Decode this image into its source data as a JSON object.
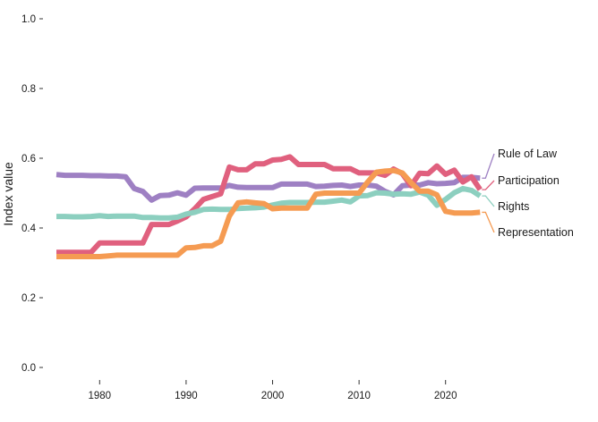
{
  "chart_data": {
    "type": "line",
    "title": "",
    "xlabel": "",
    "ylabel": "Index value",
    "xlim": [
      1975,
      2025
    ],
    "ylim": [
      0,
      1
    ],
    "x_ticks": [
      1980,
      1990,
      2000,
      2010,
      2020
    ],
    "y_ticks": [
      "0.0",
      "0.2",
      "0.4",
      "0.6",
      "0.8",
      "1.0"
    ],
    "grid": false,
    "legend": "direct labels at right end of lines",
    "x": [
      1975,
      1976,
      1977,
      1978,
      1979,
      1980,
      1981,
      1982,
      1983,
      1984,
      1985,
      1986,
      1987,
      1988,
      1989,
      1990,
      1991,
      1992,
      1993,
      1994,
      1995,
      1996,
      1997,
      1998,
      1999,
      2000,
      2001,
      2002,
      2003,
      2004,
      2005,
      2006,
      2007,
      2008,
      2009,
      2010,
      2011,
      2012,
      2013,
      2014,
      2015,
      2016,
      2017,
      2018,
      2019,
      2020,
      2021,
      2022,
      2023,
      2024
    ],
    "series": [
      {
        "name": "Rule of Law",
        "color": "#9e80c3",
        "values": [
          0.553,
          0.551,
          0.551,
          0.551,
          0.55,
          0.55,
          0.549,
          0.549,
          0.547,
          0.513,
          0.505,
          0.48,
          0.493,
          0.494,
          0.501,
          0.494,
          0.514,
          0.515,
          0.515,
          0.515,
          0.522,
          0.517,
          0.516,
          0.516,
          0.516,
          0.516,
          0.526,
          0.526,
          0.526,
          0.526,
          0.519,
          0.52,
          0.522,
          0.523,
          0.519,
          0.523,
          0.523,
          0.52,
          0.505,
          0.495,
          0.521,
          0.523,
          0.523,
          0.53,
          0.527,
          0.528,
          0.53,
          0.545,
          0.545,
          0.543
        ]
      },
      {
        "name": "Participation",
        "color": "#e0607e",
        "values": [
          0.33,
          0.33,
          0.33,
          0.33,
          0.33,
          0.357,
          0.357,
          0.357,
          0.357,
          0.357,
          0.357,
          0.41,
          0.41,
          0.41,
          0.42,
          0.432,
          0.455,
          0.482,
          0.49,
          0.498,
          0.575,
          0.567,
          0.567,
          0.584,
          0.584,
          0.595,
          0.597,
          0.604,
          0.582,
          0.582,
          0.582,
          0.582,
          0.57,
          0.57,
          0.57,
          0.558,
          0.558,
          0.558,
          0.551,
          0.569,
          0.556,
          0.521,
          0.557,
          0.556,
          0.578,
          0.554,
          0.566,
          0.532,
          0.547,
          0.51
        ]
      },
      {
        "name": "Rights",
        "color": "#8ccfbf",
        "values": [
          0.433,
          0.433,
          0.432,
          0.432,
          0.433,
          0.435,
          0.433,
          0.434,
          0.434,
          0.434,
          0.43,
          0.43,
          0.429,
          0.429,
          0.431,
          0.44,
          0.445,
          0.453,
          0.454,
          0.453,
          0.453,
          0.456,
          0.457,
          0.458,
          0.46,
          0.466,
          0.471,
          0.473,
          0.473,
          0.473,
          0.474,
          0.474,
          0.477,
          0.48,
          0.475,
          0.492,
          0.493,
          0.501,
          0.5,
          0.497,
          0.498,
          0.497,
          0.503,
          0.494,
          0.465,
          0.482,
          0.501,
          0.513,
          0.508,
          0.492
        ]
      },
      {
        "name": "Representation",
        "color": "#f59b52",
        "values": [
          0.318,
          0.318,
          0.318,
          0.318,
          0.318,
          0.318,
          0.32,
          0.322,
          0.322,
          0.322,
          0.322,
          0.322,
          0.322,
          0.322,
          0.322,
          0.343,
          0.344,
          0.349,
          0.349,
          0.362,
          0.434,
          0.472,
          0.475,
          0.472,
          0.47,
          0.455,
          0.457,
          0.457,
          0.457,
          0.457,
          0.497,
          0.5,
          0.5,
          0.5,
          0.5,
          0.5,
          0.532,
          0.56,
          0.563,
          0.565,
          0.558,
          0.53,
          0.506,
          0.506,
          0.495,
          0.448,
          0.443,
          0.443,
          0.443,
          0.445
        ]
      }
    ]
  }
}
